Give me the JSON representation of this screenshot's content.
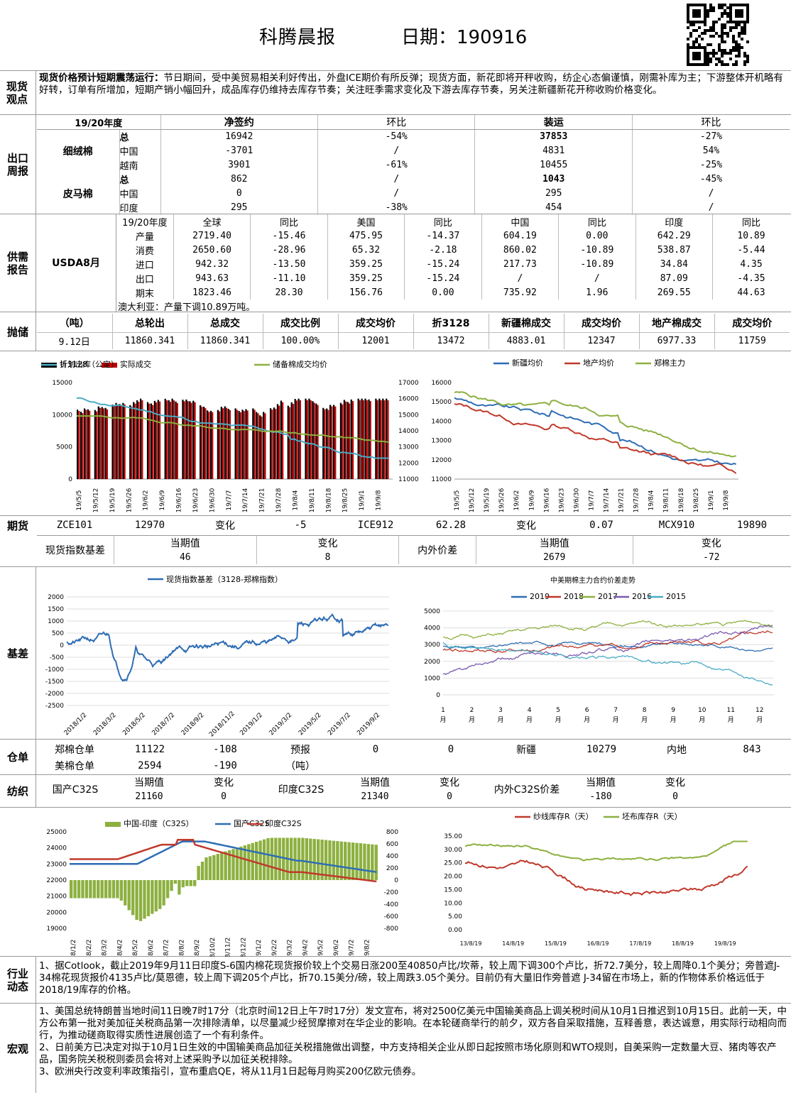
{
  "header": {
    "title": "科腾晨报",
    "date_label": "日期：190916"
  },
  "spot": {
    "label": "现货观点",
    "headline": "现货价格预计短期震荡运行：",
    "text": "节日期间，受中美贸易相关利好传出，外盘ICE期价有所反弹；现货方面，新花即将开秤收购，纺企心态偏谨慎，刚需补库为主；下游整体开机略有好转，订单有所增加，短期产销小幅回升，成品库存仍维持去库存节奏；关注旺季需求变化及下游去库存节奏，另关注新疆新花开称收购价格变化。"
  },
  "export": {
    "label": "出口周报",
    "season": "19/20年度",
    "headers": [
      "净签约",
      "环比",
      "装运",
      "环比"
    ],
    "groups": [
      {
        "name": "细绒棉",
        "rows": [
          {
            "k": "总",
            "v": [
              "16942",
              "-54%",
              "37853",
              "-27%"
            ]
          },
          {
            "k": "中国",
            "v": [
              "-3701",
              "/",
              "4831",
              "54%"
            ]
          },
          {
            "k": "越南",
            "v": [
              "3901",
              "-61%",
              "10455",
              "-25%"
            ]
          }
        ]
      },
      {
        "name": "皮马棉",
        "rows": [
          {
            "k": "总",
            "v": [
              "862",
              "/",
              "1043",
              "-45%"
            ]
          },
          {
            "k": "中国",
            "v": [
              "0",
              "/",
              "295",
              "/"
            ]
          },
          {
            "k": "印度",
            "v": [
              "295",
              "-38%",
              "454",
              "/"
            ]
          }
        ]
      }
    ]
  },
  "supply": {
    "label": "供需报告",
    "source": "USDA8月",
    "headers": [
      "19/20年度",
      "全球",
      "同比",
      "美国",
      "同比",
      "中国",
      "同比",
      "印度",
      "同比"
    ],
    "rows": [
      [
        "产量",
        "2719.40",
        "-15.46",
        "475.95",
        "-14.37",
        "604.19",
        "0.00",
        "642.29",
        "10.89"
      ],
      [
        "消费",
        "2650.60",
        "-28.96",
        "65.32",
        "-2.18",
        "860.02",
        "-10.89",
        "538.87",
        "-5.44"
      ],
      [
        "进口",
        "942.32",
        "-13.50",
        "359.25",
        "-15.24",
        "217.73",
        "-10.89",
        "34.84",
        "4.35"
      ],
      [
        "出口",
        "943.63",
        "-11.10",
        "359.25",
        "-15.24",
        "/",
        "/",
        "87.09",
        "-4.35"
      ],
      [
        "期末",
        "1823.46",
        "28.30",
        "156.76",
        "0.00",
        "735.92",
        "1.96",
        "269.55",
        "44.63"
      ]
    ],
    "note": "澳大利亚：产量下调10.89万吨。"
  },
  "auction": {
    "label": "抛储",
    "headers": [
      "（吨）",
      "总轮出",
      "总成交",
      "成交比例",
      "成交均价",
      "折3128",
      "新疆棉成交",
      "成交均价",
      "地产棉成交",
      "成交均价"
    ],
    "row": [
      "9.12日",
      "11860.341",
      "11860.341",
      "100.00%",
      "12001",
      "13472",
      "4883.01",
      "12347",
      "6977.33",
      "11759"
    ]
  },
  "chart_data": [
    {
      "type": "bar",
      "legend": [
        "计划出库",
        "实际成交",
        "储备棉成交均价",
        "折3128（公定）"
      ],
      "ylim": [
        0,
        15000
      ],
      "ylim2": [
        11000,
        17000
      ],
      "x_ticks": [
        "19/5/5",
        "19/5/12",
        "19/5/19",
        "19/5/26",
        "19/6/2",
        "19/6/9",
        "19/6/16",
        "19/6/23",
        "19/6/30",
        "19/7/7",
        "19/7/14",
        "19/7/21",
        "19/7/28",
        "19/8/4",
        "19/8/11",
        "19/8/18",
        "19/8/25",
        "19/9/1",
        "19/9/8"
      ],
      "y_ticks": [
        "0",
        "5000",
        "10000",
        "15000"
      ],
      "y2_ticks": [
        "11000",
        "12000",
        "13000",
        "14000",
        "15000",
        "16000",
        "17000"
      ],
      "series_colors": [
        "#000000",
        "#c00000",
        "#8db040",
        "#4aacc6"
      ]
    },
    {
      "type": "line",
      "legend": [
        "新疆均价",
        "地产均价",
        "郑棉主力"
      ],
      "ylim": [
        11000,
        16000
      ],
      "y_ticks": [
        "11000",
        "12000",
        "13000",
        "14000",
        "15000",
        "16000"
      ],
      "x_ticks": [
        "19/5/5",
        "19/5/12",
        "19/5/19",
        "19/5/26",
        "19/6/2",
        "19/6/9",
        "19/6/16",
        "19/6/23",
        "19/6/30",
        "19/7/7",
        "19/7/14",
        "19/7/21",
        "19/7/28",
        "19/8/4",
        "19/8/11",
        "19/8/18",
        "19/8/25",
        "19/9/1",
        "19/9/8"
      ],
      "series_colors": [
        "#2e6db4",
        "#c0392b",
        "#8db040"
      ]
    },
    {
      "type": "line",
      "title": "现货指数基差（3128-郑棉指数）",
      "ylim": [
        -2500,
        2000
      ],
      "y_ticks": [
        "2000",
        "1500",
        "1000",
        "500",
        "0",
        "-500",
        "-1000",
        "-1500",
        "-2000",
        "-2500"
      ],
      "x_ticks": [
        "2018/1/2",
        "2018/3/2",
        "2018/5/2",
        "2018/7/2",
        "2018/9/2",
        "2018/11/2",
        "2019/1/2",
        "2019/3/2",
        "2019/5/2",
        "2019/7/2",
        "2019/9/2"
      ]
    },
    {
      "type": "line",
      "title": "中美期棉主力合约价差走势",
      "legend": [
        "2019",
        "2018",
        "2017",
        "2016",
        "2015"
      ],
      "ylim": [
        0,
        5000
      ],
      "y_ticks": [
        "5000",
        "4000",
        "3000",
        "2000",
        "1000",
        "0"
      ],
      "x_ticks": [
        "1月",
        "2月",
        "3月",
        "4月",
        "5月",
        "6月",
        "7月",
        "8月",
        "9月",
        "10月",
        "11月",
        "12月"
      ],
      "series_colors": [
        "#2e6db4",
        "#c0392b",
        "#8db040",
        "#7a5ab0",
        "#4aacc6"
      ]
    },
    {
      "type": "line",
      "legend": [
        "中国-印度（C32S）",
        "国产C32S",
        "印度C32S"
      ],
      "ylim": [
        19000,
        25000
      ],
      "ylim2": [
        -800,
        800
      ],
      "y_ticks": [
        "25000",
        "24000",
        "23000",
        "22000",
        "21000",
        "20000",
        "19000"
      ],
      "y2_ticks": [
        "800",
        "600",
        "400",
        "200",
        "0",
        "-200",
        "-400",
        "-600",
        "-800"
      ],
      "x_ticks": [
        "18/1/2",
        "18/2/2",
        "18/3/2",
        "18/4/2",
        "18/5/2",
        "18/6/2",
        "18/7/2",
        "18/8/2",
        "18/9/2",
        "18/10/2",
        "18/11/2",
        "18/12/2",
        "19/1/2",
        "19/2/2",
        "19/3/2",
        "19/4/2",
        "19/5/2",
        "19/6/2",
        "19/7/2",
        "19/8/2"
      ],
      "series_colors": [
        "#8db040",
        "#2e6db4",
        "#c0392b"
      ]
    },
    {
      "type": "line",
      "legend": [
        "纱线库存R（天）",
        "坯布库存R（天）"
      ],
      "ylim": [
        0,
        35
      ],
      "y_ticks": [
        "35.00",
        "30.00",
        "25.00",
        "20.00",
        "15.00",
        "10.00",
        "5.00",
        "0.00"
      ],
      "x_ticks": [
        "13/8/19",
        "14/8/19",
        "15/8/19",
        "16/8/19",
        "17/8/19",
        "18/8/19",
        "19/8/19"
      ],
      "series_colors": [
        "#c0392b",
        "#8db040"
      ]
    }
  ],
  "futures": {
    "label": "期货",
    "row": [
      "ZCE101",
      "12970",
      "变化",
      "-5",
      "ICE912",
      "62.28",
      "变化",
      "0.07",
      "MCX910",
      "19890"
    ],
    "basis_row": {
      "left_label": "现货指数基差",
      "h1": "当期值",
      "h2": "变化",
      "v1": "46",
      "v2": "8",
      "right_label": "内外价差",
      "h3": "当期值",
      "h4": "变化",
      "v3": "2679",
      "v4": "-72"
    }
  },
  "basis_label": "基差",
  "warehouse": {
    "label": "仓单",
    "rows": [
      [
        "郑棉仓单",
        "11122",
        "-108",
        "预报",
        "0",
        "0",
        "新疆",
        "10279",
        "内地",
        "843"
      ],
      [
        "美棉仓单",
        "2594",
        "-190",
        "（吨）",
        "",
        "",
        "",
        "",
        "",
        ""
      ]
    ]
  },
  "textile": {
    "label": "纺织",
    "a": "国产C32S",
    "b": "印度C32S",
    "c": "内外C32S价差",
    "h1": "当期值",
    "h2": "变化",
    "v": [
      "21160",
      "0",
      "21340",
      "0",
      "-180",
      "0"
    ]
  },
  "industry": {
    "label": "行业动态",
    "text": "1、据Cotlook，截止2019年9月11日印度S-6国内棉花现货报价较上个交易日涨200至40850卢比/坎蒂，较上周下调300个卢比，折72.7美分，较上周降0.1个美分；旁普遮J-34棉花现货报价4135卢比/莫恩德，较上周下调205个卢比，折70.15美分/磅，较上周跌3.05个美分。目前仍有大量旧作旁普遮 J-34留在市场上，新的作物体系价格远低于2018/19库存的价格。"
  },
  "macro": {
    "label": "宏观",
    "items": [
      "1、美国总统特朗普当地时间11日晚7时17分（北京时间12日上午7时17分）发文宣布，将对2500亿美元中国输美商品上调关税时间从10月1日推迟到10月15日。此前一天，中方公布第一批对美加征关税商品第一次排除清单，以尽量减少经贸摩擦对在华企业的影响。在本轮磋商举行的前夕，双方各自采取措施，互释善意，表达诚意，用实际行动相向而行，为推动磋商取得实质性进展创造了一个有利条件。",
      "2、日前美方已决定对拟于10月1日生效的中国输美商品加征关税措施做出调整，中方支持相关企业从即日起按照市场化原则和WTO规则，自美采购一定数量大豆、猪肉等农产品，国务院关税税则委员会将对上述采购予以加征关税排除。",
      "3、欧洲央行改变利率政策指引，宣布重启QE，将从11月1日起每月购买200亿欧元债券。"
    ]
  }
}
